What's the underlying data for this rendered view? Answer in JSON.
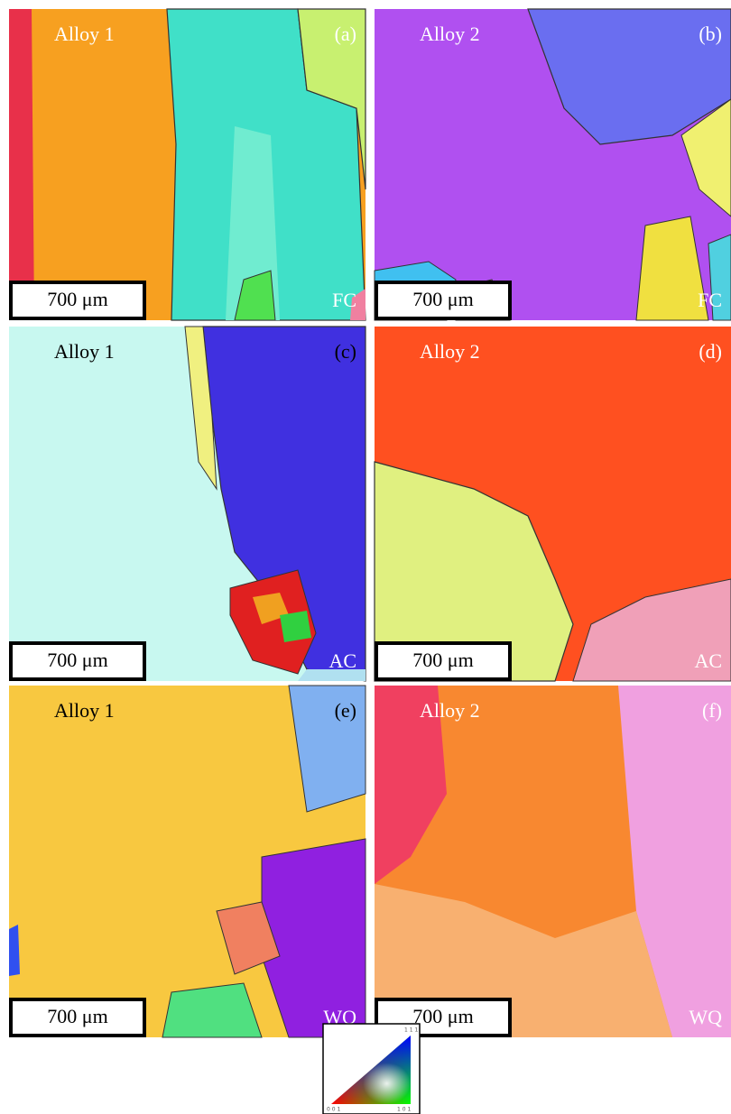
{
  "panels": [
    {
      "alloy": "Alloy 1",
      "label": "(a)",
      "scale_bar": "700 μm",
      "condition": "FC"
    },
    {
      "alloy": "Alloy 2",
      "label": "(b)",
      "scale_bar": "700 μm",
      "condition": "FC"
    },
    {
      "alloy": "Alloy 1",
      "label": "(c)",
      "scale_bar": "700 μm",
      "condition": "AC"
    },
    {
      "alloy": "Alloy 2",
      "label": "(d)",
      "scale_bar": "700 μm",
      "condition": "AC"
    },
    {
      "alloy": "Alloy 1",
      "label": "(e)",
      "scale_bar": "700 μm",
      "condition": "WQ"
    },
    {
      "alloy": "Alloy 2",
      "label": "(f)",
      "scale_bar": "700 μm",
      "condition": "WQ"
    }
  ],
  "legend": {
    "top": "1 1 1",
    "left": "0 0 1",
    "right": "1 0 1"
  }
}
